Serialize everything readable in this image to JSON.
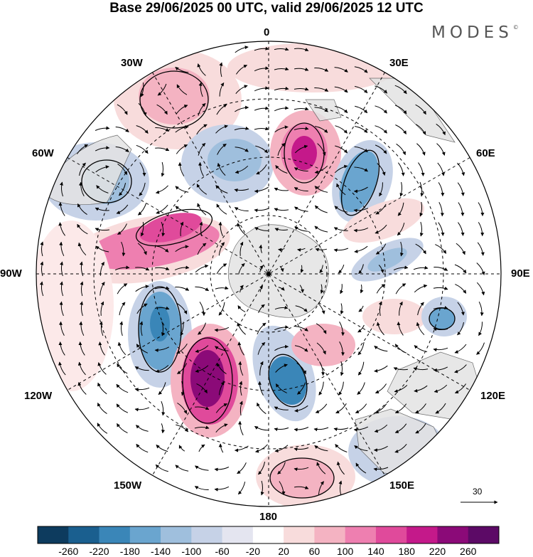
{
  "title": "Base 29/06/2025 00 UTC, valid 29/06/2025 12 UTC",
  "brand": "MODES",
  "brand_mark": "©",
  "longitude_labels": {
    "top": "0",
    "top_left": "30W",
    "top_right": "30E",
    "upper_left": "60W",
    "upper_right": "60E",
    "left": "90W",
    "right": "90E",
    "lower_left": "120W",
    "lower_right": "120E",
    "bottom_left": "150W",
    "bottom_right": "150E",
    "bottom": "180"
  },
  "reference_vector": {
    "value": "30"
  },
  "colorbar": {
    "ticks": [
      "-260",
      "-220",
      "-180",
      "-140",
      "-100",
      "-60",
      "-20",
      "20",
      "60",
      "100",
      "140",
      "180",
      "220",
      "260"
    ],
    "colors": [
      "#0d3b5e",
      "#1a5f8f",
      "#3a86b8",
      "#6aa5cf",
      "#9fbfdd",
      "#c6d2e7",
      "#e4e5f0",
      "#ffffff",
      "#f8dcdc",
      "#f4b3c2",
      "#ee7fb0",
      "#e04a9b",
      "#c4198a",
      "#8b0a78",
      "#5c0a66"
    ]
  },
  "colors": {
    "land": "#e3e3e3",
    "coast": "#555555",
    "grid": "#000000"
  }
}
